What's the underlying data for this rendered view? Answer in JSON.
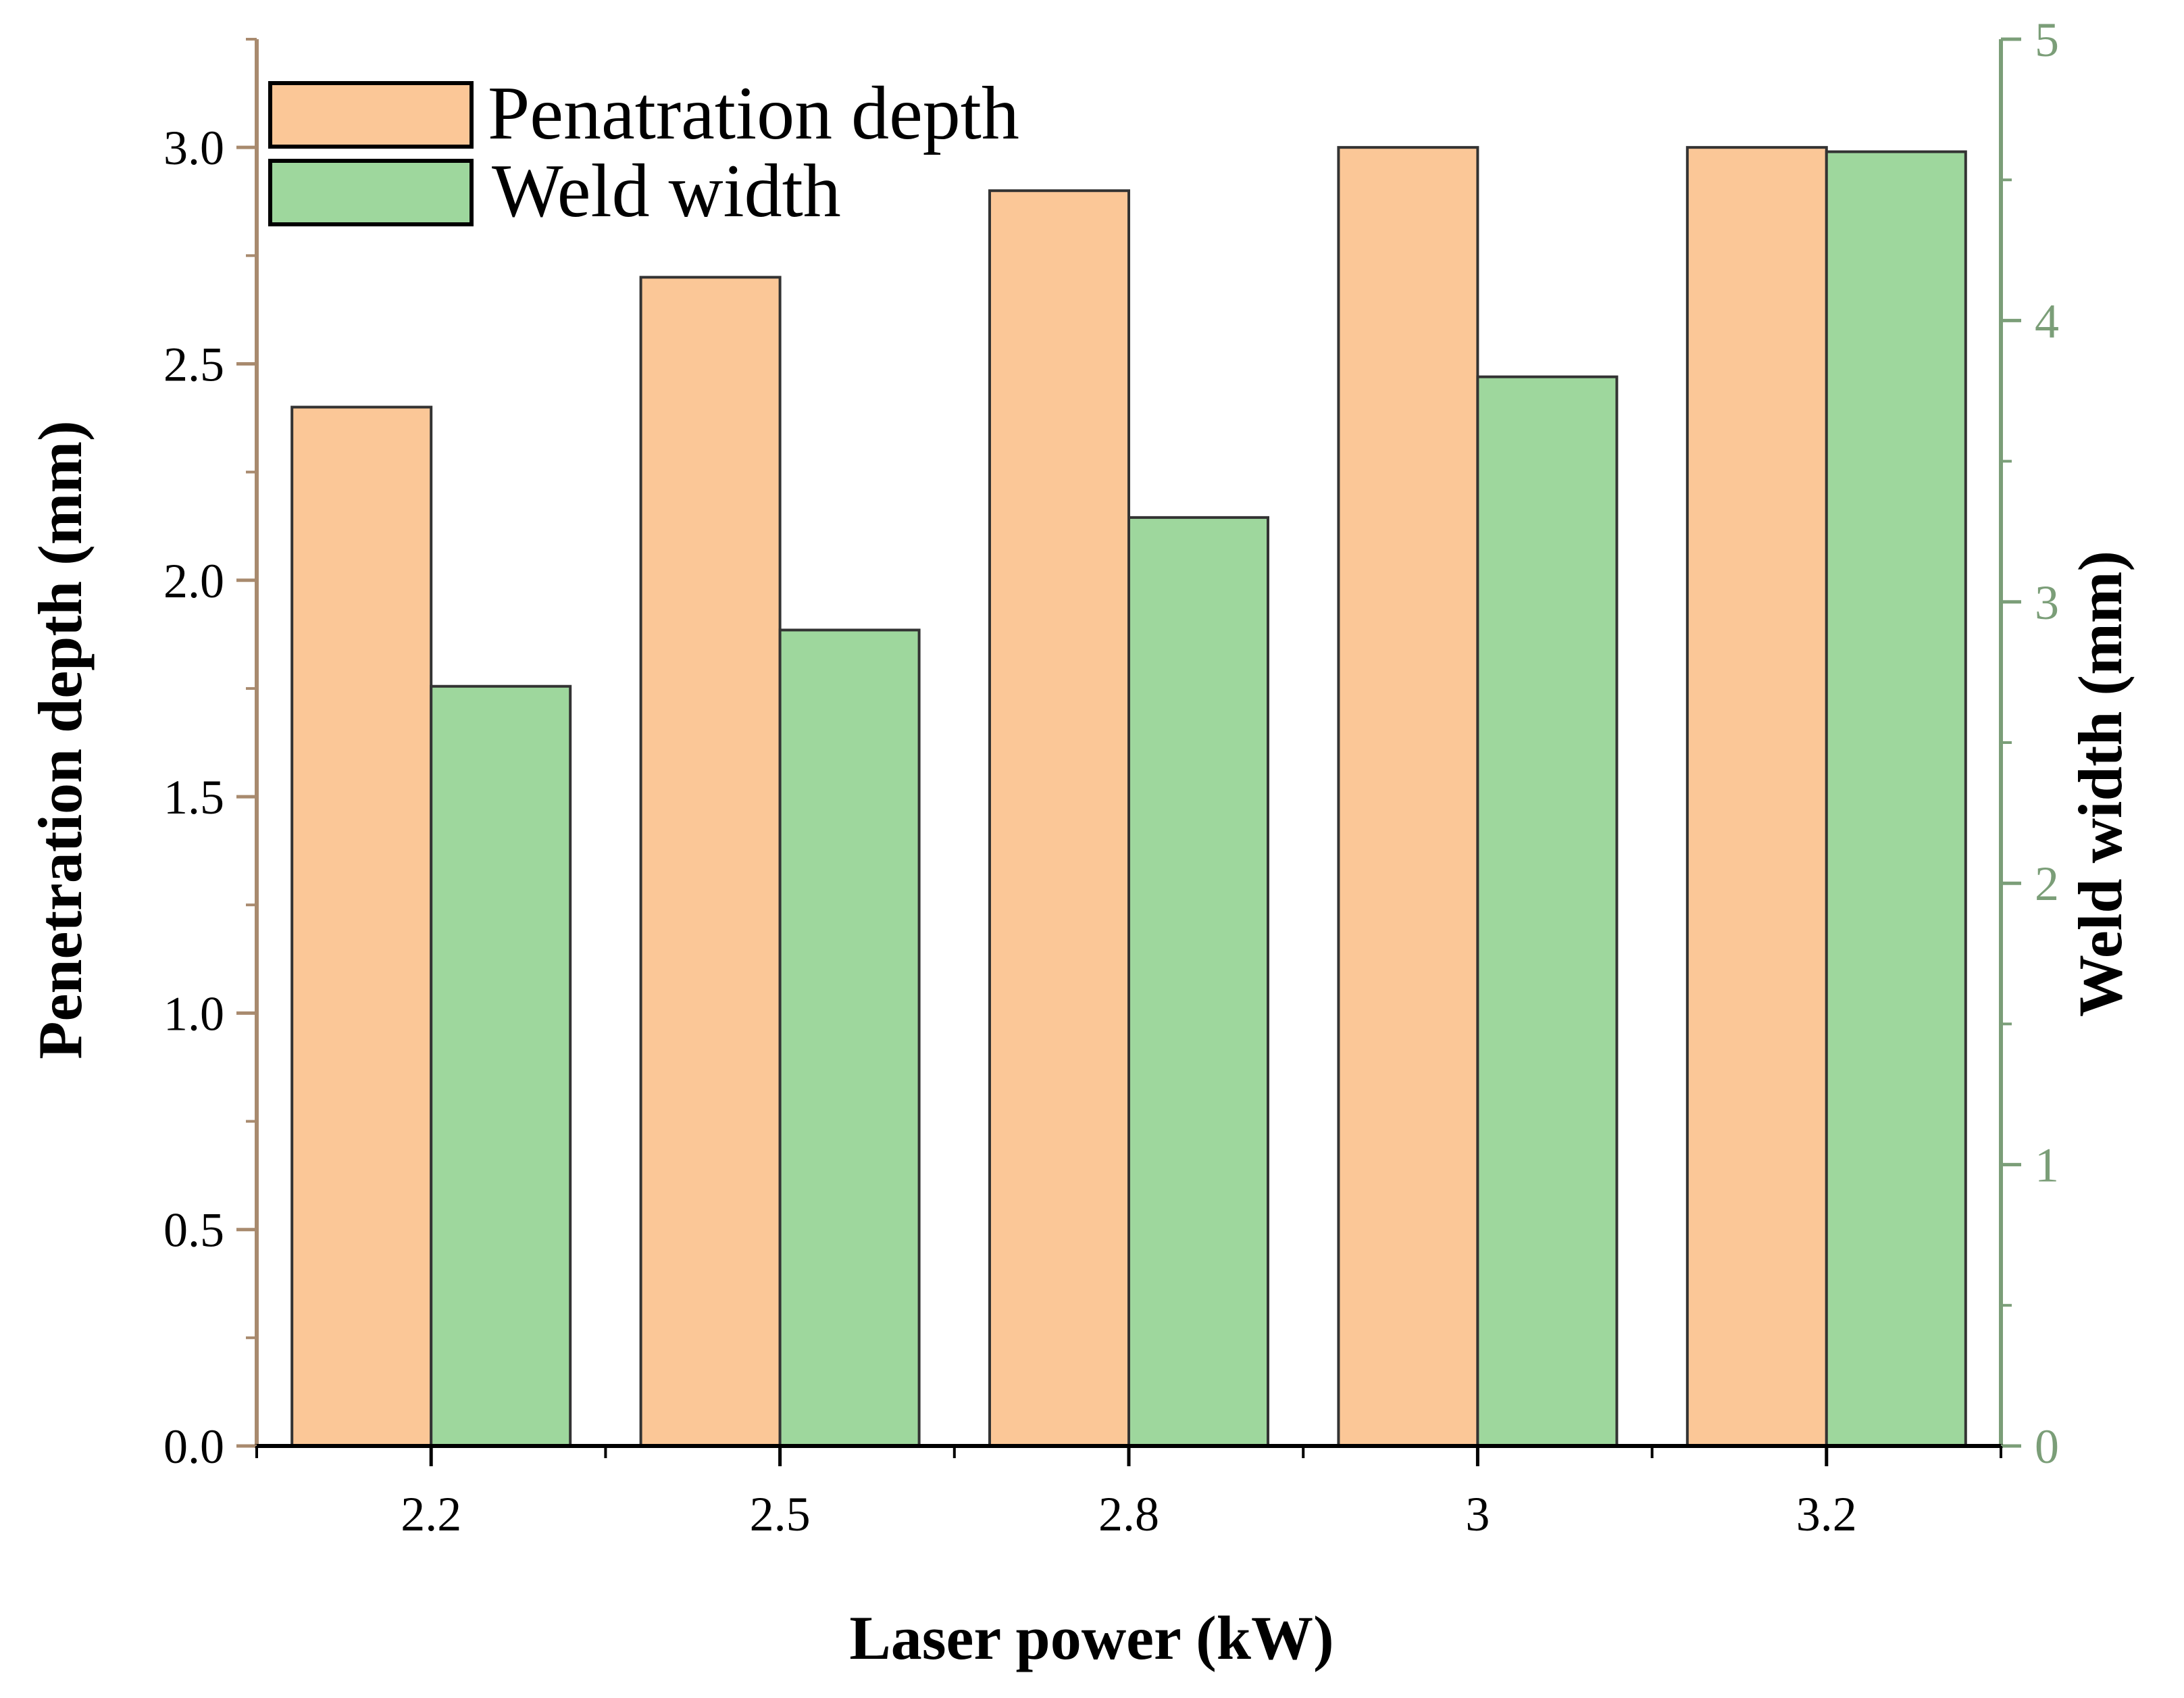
{
  "chart_data": {
    "type": "bar",
    "title": "",
    "categories": [
      "2.2",
      "2.5",
      "2.8",
      "3",
      "3.2"
    ],
    "series": [
      {
        "name": "Penatration depth",
        "axis": "left",
        "color": "#FBC797",
        "values": [
          2.4,
          2.7,
          2.9,
          3.0,
          3.0
        ]
      },
      {
        "name": "Weld width",
        "axis": "right",
        "color": "#9ED79D",
        "values": [
          2.7,
          2.9,
          3.3,
          3.8,
          4.6
        ]
      }
    ],
    "xlabel": "Laser power (kW)",
    "ylabel": "Penetration depth (mm)",
    "y2label": "Weld width (mm)",
    "ylim": [
      0,
      3.25
    ],
    "y2lim": [
      0,
      5
    ],
    "yticks": [
      "0.0",
      "0.5",
      "1.0",
      "1.5",
      "2.0",
      "2.5",
      "3.0"
    ],
    "y2ticks": [
      "0",
      "1",
      "2",
      "3",
      "4",
      "5"
    ],
    "grid": false,
    "legend_position": "top-left",
    "left_axis_color": "#A88A6E",
    "right_axis_color": "#7B9E78",
    "bar_edge_color": "#333333"
  }
}
